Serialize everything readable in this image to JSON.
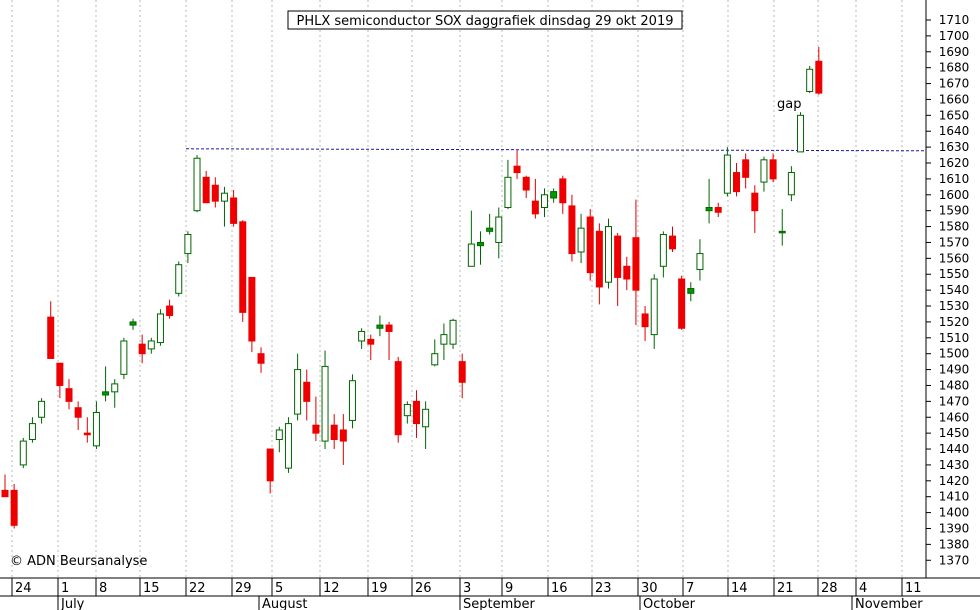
{
  "chart_data": {
    "type": "candlestick",
    "title": "PHLX semiconductor SOX daggrafiek dinsdag 29 okt 2019",
    "copyright": "© ADN Beursanalyse",
    "annotation": "gap",
    "ylim": [
      1360,
      1720
    ],
    "y_ticks": [
      1370,
      1380,
      1390,
      1400,
      1410,
      1420,
      1430,
      1440,
      1450,
      1460,
      1470,
      1480,
      1490,
      1500,
      1510,
      1520,
      1530,
      1540,
      1550,
      1560,
      1570,
      1580,
      1590,
      1600,
      1610,
      1620,
      1630,
      1640,
      1650,
      1660,
      1670,
      1680,
      1690,
      1700,
      1710
    ],
    "x_ticks": [
      "24",
      "1",
      "8",
      "15",
      "22",
      "29",
      "5",
      "12",
      "19",
      "26",
      "3",
      "9",
      "16",
      "23",
      "30",
      "7",
      "14",
      "21",
      "28",
      "4",
      "11"
    ],
    "months": [
      "July",
      "August",
      "September",
      "October",
      "November"
    ],
    "resistance_level": 1628,
    "candles": [
      {
        "o": 1414,
        "h": 1424,
        "l": 1410,
        "c": 1410
      },
      {
        "o": 1414,
        "h": 1418,
        "l": 1390,
        "c": 1392
      },
      {
        "o": 1430,
        "h": 1447,
        "l": 1428,
        "c": 1445
      },
      {
        "o": 1446,
        "h": 1460,
        "l": 1444,
        "c": 1456
      },
      {
        "o": 1460,
        "h": 1472,
        "l": 1456,
        "c": 1470
      },
      {
        "o": 1523,
        "h": 1533,
        "l": 1500,
        "c": 1497
      },
      {
        "o": 1494,
        "h": 1494,
        "l": 1472,
        "c": 1480
      },
      {
        "o": 1478,
        "h": 1484,
        "l": 1465,
        "c": 1470
      },
      {
        "o": 1466,
        "h": 1470,
        "l": 1452,
        "c": 1460
      },
      {
        "o": 1450,
        "h": 1460,
        "l": 1444,
        "c": 1449
      },
      {
        "o": 1442,
        "h": 1470,
        "l": 1440,
        "c": 1463
      },
      {
        "o": 1474,
        "h": 1492,
        "l": 1470,
        "c": 1476
      },
      {
        "o": 1476,
        "h": 1484,
        "l": 1466,
        "c": 1481
      },
      {
        "o": 1487,
        "h": 1510,
        "l": 1484,
        "c": 1508
      },
      {
        "o": 1518,
        "h": 1522,
        "l": 1515,
        "c": 1520
      },
      {
        "o": 1506,
        "h": 1512,
        "l": 1494,
        "c": 1500
      },
      {
        "o": 1503,
        "h": 1510,
        "l": 1500,
        "c": 1508
      },
      {
        "o": 1507,
        "h": 1528,
        "l": 1505,
        "c": 1525
      },
      {
        "o": 1530,
        "h": 1534,
        "l": 1522,
        "c": 1524
      },
      {
        "o": 1538,
        "h": 1558,
        "l": 1536,
        "c": 1556
      },
      {
        "o": 1563,
        "h": 1577,
        "l": 1557,
        "c": 1575
      },
      {
        "o": 1590,
        "h": 1625,
        "l": 1589,
        "c": 1623
      },
      {
        "o": 1611,
        "h": 1615,
        "l": 1595,
        "c": 1595
      },
      {
        "o": 1606,
        "h": 1611,
        "l": 1592,
        "c": 1596
      },
      {
        "o": 1596,
        "h": 1605,
        "l": 1580,
        "c": 1601
      },
      {
        "o": 1598,
        "h": 1603,
        "l": 1580,
        "c": 1582
      },
      {
        "o": 1583,
        "h": 1584,
        "l": 1520,
        "c": 1526
      },
      {
        "o": 1548,
        "h": 1548,
        "l": 1501,
        "c": 1508
      },
      {
        "o": 1500,
        "h": 1504,
        "l": 1488,
        "c": 1494
      },
      {
        "o": 1440,
        "h": 1440,
        "l": 1412,
        "c": 1420
      },
      {
        "o": 1446,
        "h": 1454,
        "l": 1438,
        "c": 1452
      },
      {
        "o": 1428,
        "h": 1460,
        "l": 1425,
        "c": 1456
      },
      {
        "o": 1462,
        "h": 1500,
        "l": 1458,
        "c": 1490
      },
      {
        "o": 1482,
        "h": 1490,
        "l": 1458,
        "c": 1470
      },
      {
        "o": 1455,
        "h": 1473,
        "l": 1445,
        "c": 1450
      },
      {
        "o": 1445,
        "h": 1502,
        "l": 1440,
        "c": 1492
      },
      {
        "o": 1455,
        "h": 1462,
        "l": 1440,
        "c": 1446
      },
      {
        "o": 1452,
        "h": 1462,
        "l": 1430,
        "c": 1445
      },
      {
        "o": 1458,
        "h": 1487,
        "l": 1453,
        "c": 1483
      },
      {
        "o": 1508,
        "h": 1516,
        "l": 1503,
        "c": 1514
      },
      {
        "o": 1509,
        "h": 1512,
        "l": 1496,
        "c": 1506
      },
      {
        "o": 1516,
        "h": 1524,
        "l": 1511,
        "c": 1518
      },
      {
        "o": 1518,
        "h": 1520,
        "l": 1496,
        "c": 1514
      },
      {
        "o": 1495,
        "h": 1498,
        "l": 1444,
        "c": 1449
      },
      {
        "o": 1461,
        "h": 1470,
        "l": 1456,
        "c": 1468
      },
      {
        "o": 1470,
        "h": 1477,
        "l": 1447,
        "c": 1456
      },
      {
        "o": 1454,
        "h": 1470,
        "l": 1440,
        "c": 1465
      },
      {
        "o": 1493,
        "h": 1509,
        "l": 1492,
        "c": 1500
      },
      {
        "o": 1506,
        "h": 1519,
        "l": 1496,
        "c": 1512
      },
      {
        "o": 1506,
        "h": 1522,
        "l": 1503,
        "c": 1521
      },
      {
        "o": 1495,
        "h": 1500,
        "l": 1472,
        "c": 1482
      },
      {
        "o": 1555,
        "h": 1590,
        "l": 1555,
        "c": 1569
      },
      {
        "o": 1568,
        "h": 1577,
        "l": 1556,
        "c": 1570
      },
      {
        "o": 1577,
        "h": 1588,
        "l": 1575,
        "c": 1579
      },
      {
        "o": 1570,
        "h": 1592,
        "l": 1560,
        "c": 1586
      },
      {
        "o": 1592,
        "h": 1622,
        "l": 1591,
        "c": 1611
      },
      {
        "o": 1618,
        "h": 1628,
        "l": 1610,
        "c": 1614
      },
      {
        "o": 1611,
        "h": 1612,
        "l": 1598,
        "c": 1603
      },
      {
        "o": 1596,
        "h": 1610,
        "l": 1585,
        "c": 1588
      },
      {
        "o": 1592,
        "h": 1604,
        "l": 1586,
        "c": 1600
      },
      {
        "o": 1598,
        "h": 1604,
        "l": 1595,
        "c": 1602
      },
      {
        "o": 1610,
        "h": 1612,
        "l": 1588,
        "c": 1595
      },
      {
        "o": 1593,
        "h": 1600,
        "l": 1558,
        "c": 1563
      },
      {
        "o": 1564,
        "h": 1588,
        "l": 1557,
        "c": 1579
      },
      {
        "o": 1586,
        "h": 1591,
        "l": 1546,
        "c": 1551
      },
      {
        "o": 1577,
        "h": 1582,
        "l": 1531,
        "c": 1542
      },
      {
        "o": 1545,
        "h": 1585,
        "l": 1541,
        "c": 1580
      },
      {
        "o": 1574,
        "h": 1576,
        "l": 1530,
        "c": 1548
      },
      {
        "o": 1555,
        "h": 1561,
        "l": 1540,
        "c": 1547
      },
      {
        "o": 1573,
        "h": 1597,
        "l": 1518,
        "c": 1540
      },
      {
        "o": 1525,
        "h": 1530,
        "l": 1508,
        "c": 1517
      },
      {
        "o": 1512,
        "h": 1550,
        "l": 1503,
        "c": 1547
      },
      {
        "o": 1555,
        "h": 1577,
        "l": 1548,
        "c": 1575
      },
      {
        "o": 1574,
        "h": 1580,
        "l": 1564,
        "c": 1566
      },
      {
        "o": 1547,
        "h": 1549,
        "l": 1515,
        "c": 1516
      },
      {
        "o": 1538,
        "h": 1545,
        "l": 1533,
        "c": 1541
      },
      {
        "o": 1553,
        "h": 1572,
        "l": 1546,
        "c": 1563
      },
      {
        "o": 1590,
        "h": 1610,
        "l": 1582,
        "c": 1592
      },
      {
        "o": 1592,
        "h": 1595,
        "l": 1586,
        "c": 1589
      },
      {
        "o": 1601,
        "h": 1630,
        "l": 1599,
        "c": 1625
      },
      {
        "o": 1614,
        "h": 1620,
        "l": 1599,
        "c": 1602
      },
      {
        "o": 1622,
        "h": 1626,
        "l": 1604,
        "c": 1611
      },
      {
        "o": 1601,
        "h": 1606,
        "l": 1576,
        "c": 1590
      },
      {
        "o": 1608,
        "h": 1624,
        "l": 1602,
        "c": 1622
      },
      {
        "o": 1622,
        "h": 1626,
        "l": 1608,
        "c": 1610
      },
      {
        "o": 1577,
        "h": 1591,
        "l": 1568,
        "c": 1577
      },
      {
        "o": 1600,
        "h": 1618,
        "l": 1596,
        "c": 1614
      },
      {
        "o": 1627,
        "h": 1652,
        "l": 1627,
        "c": 1650
      },
      {
        "o": 1665,
        "h": 1681,
        "l": 1664,
        "c": 1679
      },
      {
        "o": 1684,
        "h": 1693,
        "l": 1663,
        "c": 1664
      }
    ]
  }
}
